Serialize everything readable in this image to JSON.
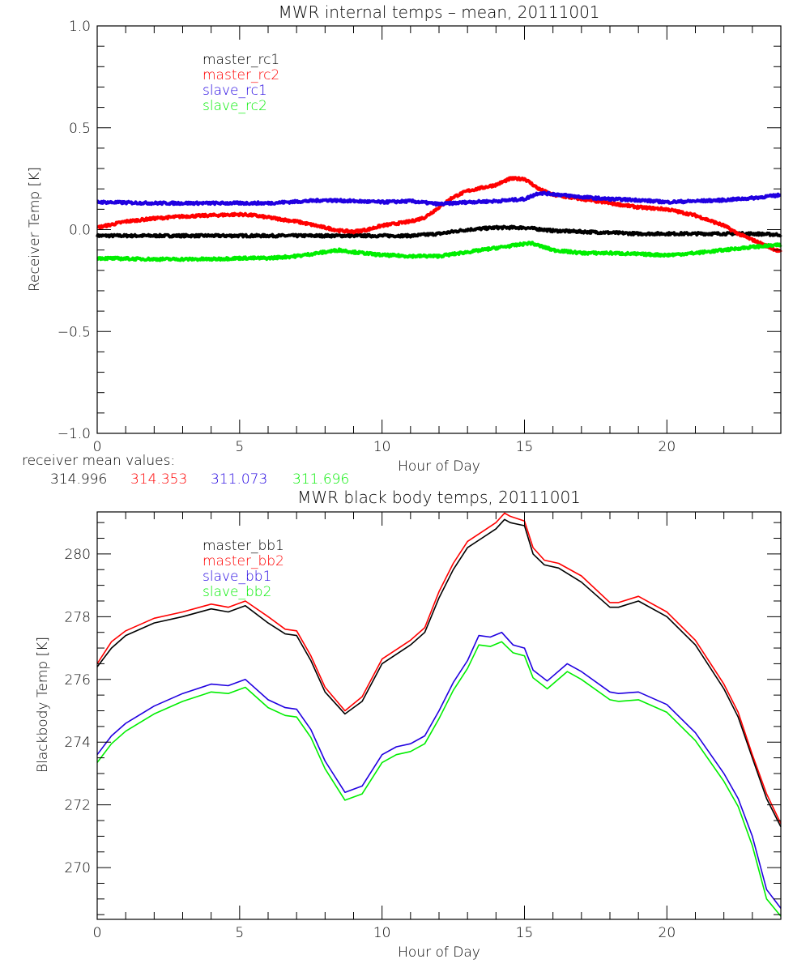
{
  "chart_data": [
    {
      "type": "line",
      "title": "MWR internal temps – mean, 20111001",
      "xlabel": "Hour of Day",
      "ylabel": "Receiver Temp [K]",
      "xlim": [
        0,
        24
      ],
      "ylim": [
        -1.0,
        1.0
      ],
      "xticks": [
        0,
        5,
        10,
        15,
        20
      ],
      "xtick_labels": [
        "0",
        "5",
        "10",
        "15",
        "20"
      ],
      "yticks": [
        -1.0,
        -0.5,
        0.0,
        0.5,
        1.0
      ],
      "ytick_labels": [
        "−1.0",
        "−0.5",
        "0.0",
        "0.5",
        "1.0"
      ],
      "grid": false,
      "legend_position": "top-left",
      "series": [
        {
          "name": "master_rc1",
          "color": "#000000",
          "x": [
            0,
            1,
            2,
            3,
            4,
            5,
            6,
            7,
            8,
            9,
            10,
            11,
            12,
            13,
            14,
            15,
            16,
            17,
            18,
            19,
            20,
            21,
            22,
            23,
            24
          ],
          "y": [
            -0.03,
            -0.03,
            -0.03,
            -0.03,
            -0.03,
            -0.03,
            -0.03,
            -0.03,
            -0.03,
            -0.03,
            -0.03,
            -0.03,
            -0.02,
            0.0,
            0.01,
            0.01,
            -0.005,
            -0.01,
            -0.015,
            -0.02,
            -0.02,
            -0.02,
            -0.02,
            -0.02,
            -0.025
          ]
        },
        {
          "name": "master_rc2",
          "color": "#ff0000",
          "x": [
            0,
            0.5,
            1,
            2,
            3,
            4,
            5,
            5.5,
            6,
            7,
            8,
            8.5,
            9,
            9.5,
            10,
            11,
            11.5,
            12,
            12.5,
            13,
            14,
            14.5,
            15,
            15.5,
            16,
            17,
            18,
            19,
            20,
            21,
            22,
            22.5,
            23,
            24
          ],
          "y": [
            0.01,
            0.025,
            0.04,
            0.055,
            0.065,
            0.07,
            0.075,
            0.07,
            0.06,
            0.04,
            0.01,
            -0.005,
            -0.01,
            0.0,
            0.02,
            0.04,
            0.06,
            0.11,
            0.16,
            0.19,
            0.22,
            0.25,
            0.25,
            0.2,
            0.17,
            0.15,
            0.13,
            0.11,
            0.1,
            0.07,
            0.02,
            -0.02,
            -0.05,
            -0.11
          ]
        },
        {
          "name": "slave_rc1",
          "color": "#2000e0",
          "x": [
            0,
            2,
            4,
            6,
            8,
            9,
            10,
            11,
            12,
            13,
            14,
            15,
            15.5,
            16,
            17,
            18,
            19,
            20,
            21,
            22,
            23,
            24
          ],
          "y": [
            0.135,
            0.13,
            0.13,
            0.13,
            0.145,
            0.14,
            0.135,
            0.14,
            0.125,
            0.135,
            0.14,
            0.15,
            0.18,
            0.175,
            0.16,
            0.15,
            0.145,
            0.135,
            0.14,
            0.145,
            0.155,
            0.17
          ]
        },
        {
          "name": "slave_rc2",
          "color": "#00ee00",
          "x": [
            0,
            2,
            4,
            5,
            6,
            7,
            8,
            8.5,
            9,
            10,
            11,
            12,
            13,
            14,
            15,
            15.2,
            16,
            17,
            18,
            19,
            20,
            21,
            22,
            23,
            24
          ],
          "y": [
            -0.14,
            -0.145,
            -0.145,
            -0.14,
            -0.14,
            -0.13,
            -0.11,
            -0.1,
            -0.11,
            -0.125,
            -0.13,
            -0.13,
            -0.11,
            -0.09,
            -0.07,
            -0.065,
            -0.1,
            -0.115,
            -0.115,
            -0.12,
            -0.125,
            -0.115,
            -0.1,
            -0.085,
            -0.075
          ]
        }
      ],
      "annotation": {
        "label": "receiver mean values:",
        "values": [
          {
            "text": "314.996",
            "color": "#000000"
          },
          {
            "text": "314.353",
            "color": "#ff0000"
          },
          {
            "text": "311.073",
            "color": "#2000e0"
          },
          {
            "text": "311.696",
            "color": "#00ee00"
          }
        ]
      }
    },
    {
      "type": "line",
      "title": "MWR black body temps, 20111001",
      "xlabel": "Hour of Day",
      "ylabel": "Blackbody Temp [K]",
      "xlim": [
        0,
        24
      ],
      "ylim": [
        268.35,
        281.34
      ],
      "xticks": [
        0,
        5,
        10,
        15,
        20
      ],
      "xtick_labels": [
        "0",
        "5",
        "10",
        "15",
        "20"
      ],
      "yticks": [
        270,
        272,
        274,
        276,
        278,
        280
      ],
      "ytick_labels": [
        "270",
        "272",
        "274",
        "276",
        "278",
        "280"
      ],
      "grid": false,
      "legend_position": "top-left",
      "series": [
        {
          "name": "master_bb1",
          "color": "#000000",
          "x": [
            0,
            0.5,
            1,
            2,
            3,
            4,
            4.6,
            5.2,
            6,
            6.6,
            7,
            7.5,
            8,
            8.7,
            9.3,
            10,
            11,
            11.5,
            12,
            12.5,
            13,
            13.5,
            14,
            14.3,
            14.5,
            15,
            15.3,
            15.7,
            16.2,
            17,
            18,
            18.3,
            19,
            20,
            21,
            22,
            22.5,
            23,
            23.5,
            24
          ],
          "y": [
            276.4,
            277.0,
            277.4,
            277.8,
            278.0,
            278.25,
            278.15,
            278.35,
            277.8,
            277.45,
            277.4,
            276.6,
            275.6,
            274.9,
            275.3,
            276.5,
            277.1,
            277.5,
            278.6,
            279.5,
            280.2,
            280.5,
            280.8,
            281.1,
            281.0,
            280.9,
            280.0,
            279.65,
            279.55,
            279.1,
            278.3,
            278.3,
            278.5,
            278.0,
            277.1,
            275.7,
            274.8,
            273.5,
            272.2,
            271.3
          ]
        },
        {
          "name": "master_bb2",
          "color": "#ff0000",
          "x": [
            0,
            0.5,
            1,
            2,
            3,
            4,
            4.6,
            5.2,
            6,
            6.6,
            7,
            7.5,
            8,
            8.7,
            9.3,
            10,
            11,
            11.5,
            12,
            12.5,
            13,
            13.5,
            14,
            14.3,
            14.5,
            15,
            15.3,
            15.7,
            16.2,
            17,
            18,
            18.3,
            19,
            20,
            21,
            22,
            22.5,
            23,
            23.5,
            24
          ],
          "y": [
            276.5,
            277.2,
            277.55,
            277.95,
            278.15,
            278.4,
            278.3,
            278.5,
            278.0,
            277.6,
            277.55,
            276.75,
            275.75,
            275.0,
            275.45,
            276.65,
            277.25,
            277.65,
            278.8,
            279.7,
            280.4,
            280.7,
            281.0,
            281.3,
            281.2,
            281.05,
            280.2,
            279.8,
            279.7,
            279.3,
            278.45,
            278.45,
            278.65,
            278.15,
            277.25,
            275.85,
            274.95,
            273.6,
            272.35,
            271.4
          ]
        },
        {
          "name": "slave_bb1",
          "color": "#2000e0",
          "x": [
            0,
            0.5,
            1,
            2,
            3,
            4,
            4.6,
            5.2,
            6,
            6.6,
            7,
            7.5,
            8,
            8.7,
            9.3,
            10,
            10.5,
            11,
            11.5,
            12,
            12.5,
            13,
            13.4,
            13.8,
            14.2,
            14.6,
            15,
            15.3,
            15.8,
            16.5,
            17,
            18,
            18.3,
            19,
            20,
            21,
            22,
            22.5,
            23,
            23.5,
            24
          ],
          "y": [
            273.6,
            274.2,
            274.6,
            275.15,
            275.55,
            275.85,
            275.8,
            276.0,
            275.35,
            275.1,
            275.05,
            274.4,
            273.4,
            272.4,
            272.6,
            273.6,
            273.85,
            273.95,
            274.2,
            275.0,
            275.9,
            276.6,
            277.4,
            277.35,
            277.5,
            277.1,
            277.0,
            276.3,
            275.95,
            276.5,
            276.25,
            275.6,
            275.55,
            275.6,
            275.2,
            274.3,
            273.0,
            272.2,
            271.0,
            269.3,
            268.7
          ]
        },
        {
          "name": "slave_bb2",
          "color": "#00ee00",
          "x": [
            0,
            0.5,
            1,
            2,
            3,
            4,
            4.6,
            5.2,
            6,
            6.6,
            7,
            7.5,
            8,
            8.7,
            9.3,
            10,
            10.5,
            11,
            11.5,
            12,
            12.5,
            13,
            13.4,
            13.8,
            14.2,
            14.6,
            15,
            15.3,
            15.8,
            16.5,
            17,
            18,
            18.3,
            19,
            20,
            21,
            22,
            22.5,
            23,
            23.5,
            24
          ],
          "y": [
            273.35,
            273.95,
            274.35,
            274.9,
            275.3,
            275.6,
            275.55,
            275.75,
            275.1,
            274.85,
            274.8,
            274.15,
            273.15,
            272.15,
            272.35,
            273.35,
            273.6,
            273.7,
            273.95,
            274.75,
            275.65,
            276.35,
            277.1,
            277.05,
            277.2,
            276.85,
            276.75,
            276.05,
            275.7,
            276.25,
            276.0,
            275.35,
            275.3,
            275.35,
            274.95,
            274.05,
            272.75,
            271.95,
            270.7,
            269.0,
            268.45
          ]
        }
      ]
    }
  ]
}
